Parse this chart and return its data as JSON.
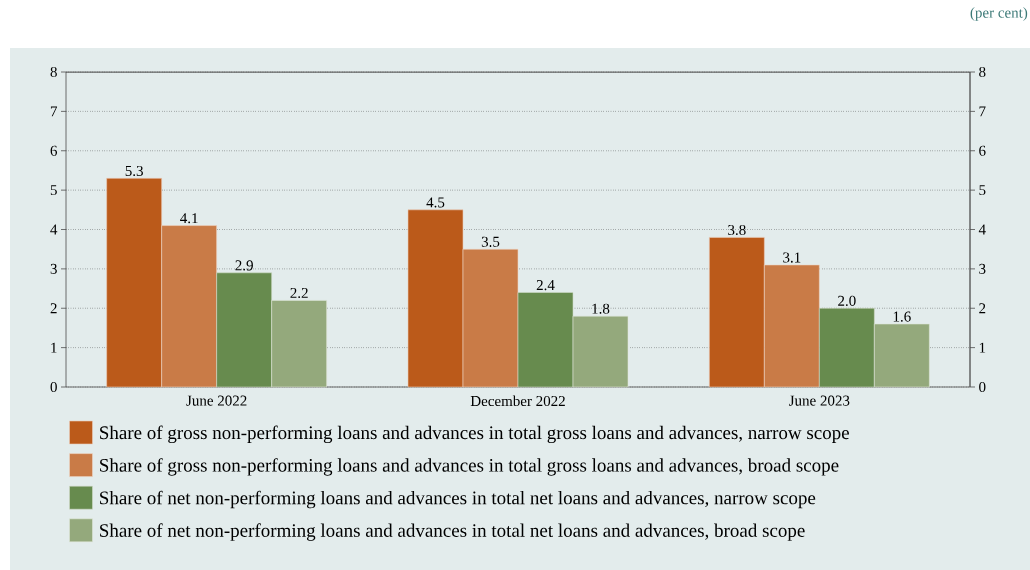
{
  "chart_data": {
    "type": "bar",
    "annotations": [
      "(per cent)"
    ],
    "categories": [
      "June 2022",
      "December 2022",
      "June 2023"
    ],
    "series": [
      {
        "name": "Share of gross non-performing loans and advances in total gross loans and advances, narrow scope",
        "color": "#bb5a1a",
        "values": [
          5.3,
          4.5,
          3.8
        ],
        "value_labels": [
          "5.3",
          "4.5",
          "3.8"
        ]
      },
      {
        "name": "Share of gross non-performing loans and advances in total gross loans and advances, broad scope",
        "color": "#c97b47",
        "values": [
          4.1,
          3.5,
          3.1
        ],
        "value_labels": [
          "4.1",
          "3.5",
          "3.1"
        ]
      },
      {
        "name": "Share of net non-performing loans and advances in total net loans and advances, narrow scope",
        "color": "#678b4e",
        "values": [
          2.9,
          2.4,
          2.0
        ],
        "value_labels": [
          "2.9",
          "2.4",
          "2.0"
        ]
      },
      {
        "name": "Share of net non-performing loans and advances in total net loans and advances, broad scope",
        "color": "#94a97c",
        "values": [
          2.2,
          1.8,
          1.6
        ],
        "value_labels": [
          "2.2",
          "1.8",
          "1.6"
        ]
      }
    ],
    "ylim": [
      0,
      8
    ],
    "yticks": [
      0,
      1,
      2,
      3,
      4,
      5,
      6,
      7,
      8
    ],
    "y2lim": [
      0,
      8
    ],
    "y2ticks": [
      0,
      1,
      2,
      3,
      4,
      5,
      6,
      7,
      8
    ],
    "grid": "y",
    "legend": "bottom"
  }
}
